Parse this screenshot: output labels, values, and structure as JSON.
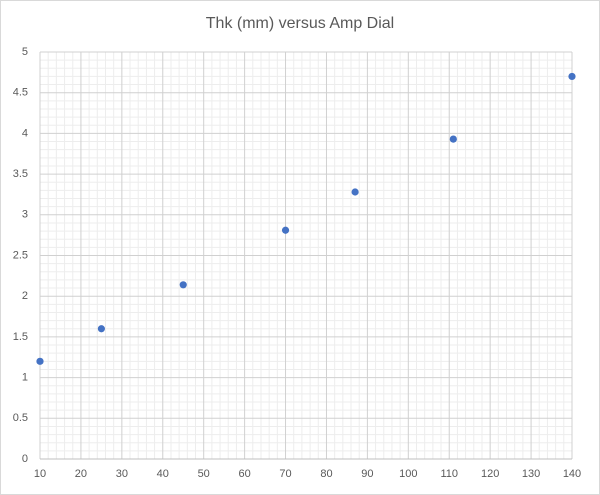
{
  "chart_data": {
    "type": "scatter",
    "title": "Thk (mm) versus Amp Dial",
    "series": [
      {
        "color": "#4472c4",
        "x": [
          10,
          25,
          45,
          70,
          87,
          111,
          140
        ],
        "values": [
          1.2,
          1.6,
          2.14,
          2.81,
          3.28,
          3.93,
          4.7
        ]
      }
    ],
    "xlim": [
      10,
      140
    ],
    "xticks": [
      10,
      20,
      30,
      40,
      50,
      60,
      70,
      80,
      90,
      100,
      110,
      120,
      130,
      140
    ],
    "ylim": [
      0,
      5
    ],
    "yticks": [
      0,
      0.5,
      1,
      1.5,
      2,
      2.5,
      3,
      3.5,
      4,
      4.5,
      5
    ],
    "grid": true,
    "minor_grid": true
  }
}
